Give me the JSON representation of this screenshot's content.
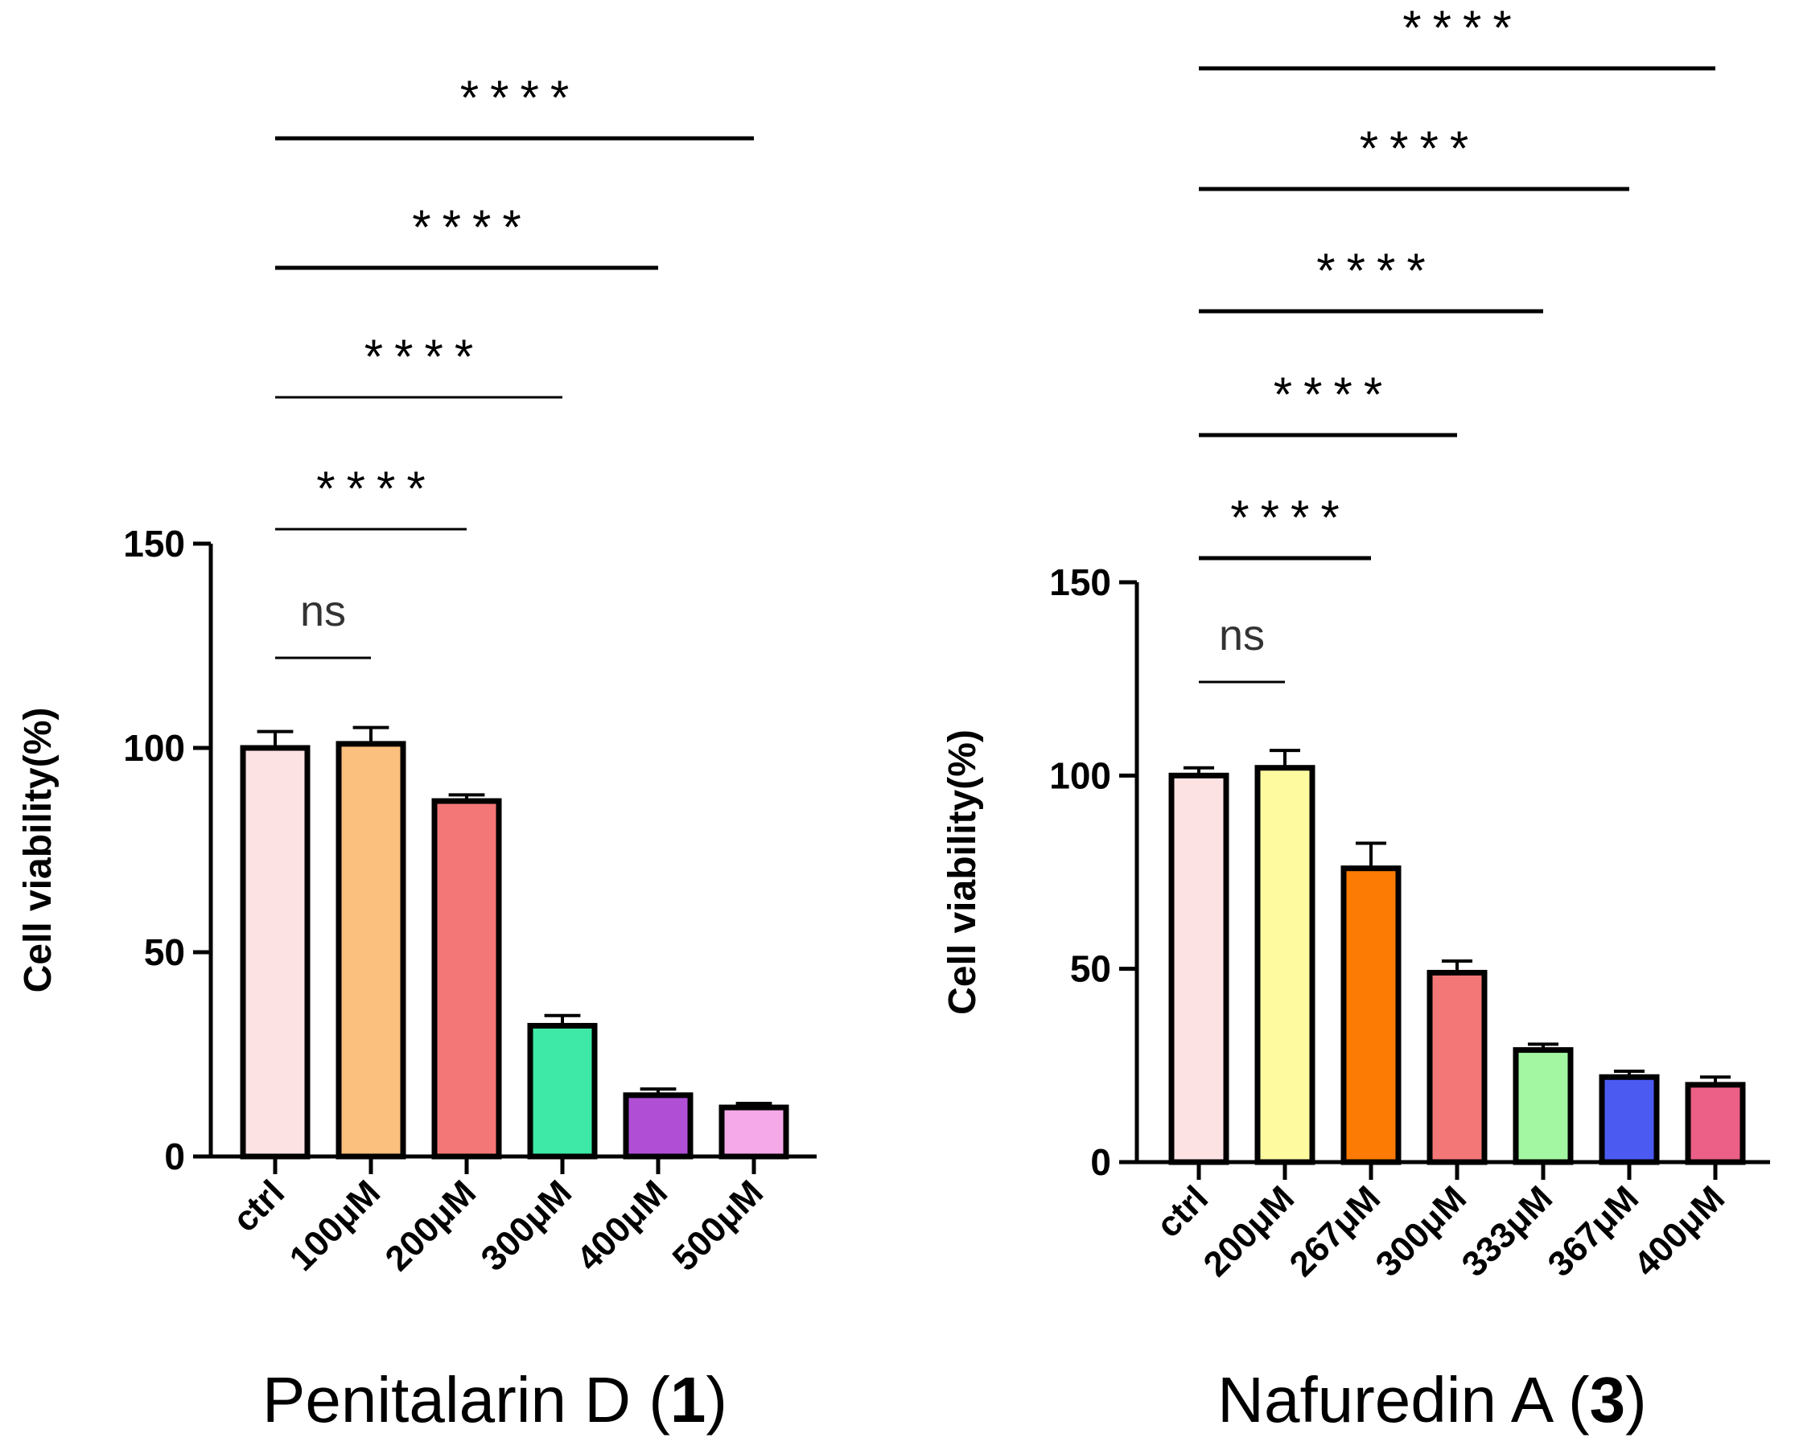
{
  "chart_data": [
    {
      "type": "bar",
      "title": "Penitalarin D (",
      "title_bold": "1",
      "title_suffix": ")",
      "ylabel": "Cell viability(%)",
      "ylim": [
        0,
        150
      ],
      "yticks": [
        0,
        50,
        100,
        150
      ],
      "categories": [
        "ctrl",
        "100μM",
        "200μM",
        "300μM",
        "400μM",
        "500μM"
      ],
      "values": [
        100,
        101,
        87,
        32,
        15,
        12
      ],
      "errors": [
        4,
        4,
        1.5,
        2.5,
        1.5,
        1
      ],
      "colors": [
        "#fde2e4",
        "#fbbf7e",
        "#f47777",
        "#3ee8a6",
        "#b04fd6",
        "#f6a9e8"
      ],
      "significance": [
        {
          "from": 0,
          "to": 1,
          "label": "ns"
        },
        {
          "from": 0,
          "to": 2,
          "label": "****"
        },
        {
          "from": 0,
          "to": 3,
          "label": "****"
        },
        {
          "from": 0,
          "to": 4,
          "label": "****"
        },
        {
          "from": 0,
          "to": 5,
          "label": "****"
        }
      ]
    },
    {
      "type": "bar",
      "title": "Nafuredin A (",
      "title_bold": "3",
      "title_suffix": ")",
      "ylabel": "Cell viability(%)",
      "ylim": [
        0,
        150
      ],
      "yticks": [
        0,
        50,
        100,
        150
      ],
      "categories": [
        "ctrl",
        "200μM",
        "267μM",
        "300μM",
        "333μM",
        "367μM",
        "400μM"
      ],
      "values": [
        100,
        102,
        76,
        49,
        29,
        22,
        20
      ],
      "errors": [
        2,
        4.5,
        6.5,
        3,
        1.5,
        1.5,
        2
      ],
      "colors": [
        "#fde2e4",
        "#fdfaa0",
        "#fb7b05",
        "#f47777",
        "#a3f7a3",
        "#4b5bf2",
        "#ec5f86"
      ],
      "significance": [
        {
          "from": 0,
          "to": 1,
          "label": "ns"
        },
        {
          "from": 0,
          "to": 2,
          "label": "****"
        },
        {
          "from": 0,
          "to": 3,
          "label": "****"
        },
        {
          "from": 0,
          "to": 4,
          "label": "****"
        },
        {
          "from": 0,
          "to": 5,
          "label": "****"
        },
        {
          "from": 0,
          "to": 6,
          "label": "****"
        }
      ]
    }
  ]
}
